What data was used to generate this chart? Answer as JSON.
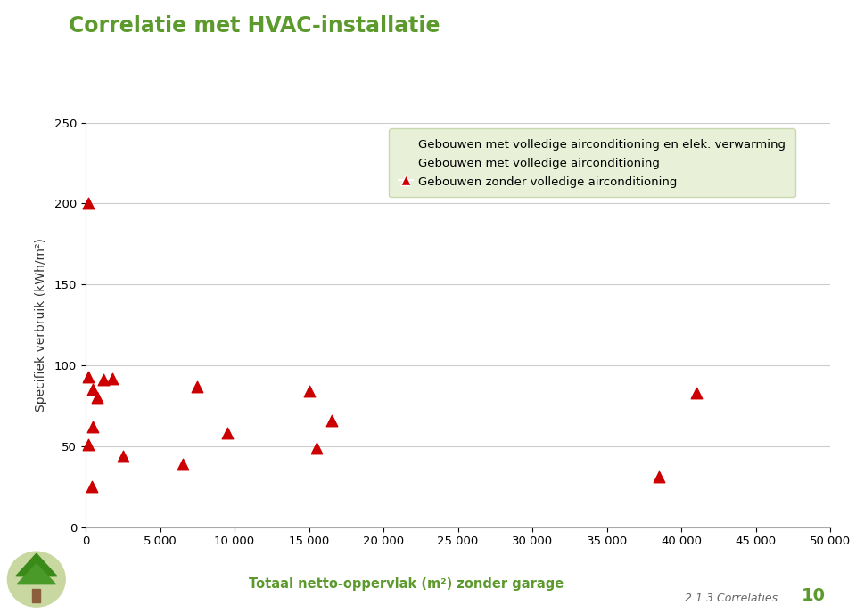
{
  "title": "Correlatie met HVAC-installatie",
  "title_color": "#5c9a2e",
  "xlabel": "Totaal netto-oppervlak (m²) zonder garage",
  "ylabel": "Specifiek verbruik (kWh/m²)",
  "background_color": "#ffffff",
  "plot_bg_color": "#ffffff",
  "xlim": [
    0,
    50000
  ],
  "ylim": [
    0,
    250
  ],
  "xticks": [
    0,
    5000,
    10000,
    15000,
    20000,
    25000,
    30000,
    35000,
    40000,
    45000,
    50000
  ],
  "yticks": [
    0,
    50,
    100,
    150,
    200,
    250
  ],
  "xtick_labels": [
    "0",
    "5.000",
    "10.000",
    "15.000",
    "20.000",
    "25.000",
    "30.000",
    "35.000",
    "40.000",
    "45.000",
    "50.000"
  ],
  "ytick_labels": [
    "0",
    "50",
    "100",
    "150",
    "200",
    "250"
  ],
  "marker_color": "#cc0000",
  "marker": "^",
  "marker_size": 9,
  "legend_entries": [
    "Gebouwen met volledige airconditioning en elek. verwarming",
    "Gebouwen met volledige airconditioning",
    "Gebouwen zonder volledige airconditioning"
  ],
  "legend_bg": "#e8f0d8",
  "legend_edge": "#c8d8b0",
  "subtitle_text": "2.1.3 Correlaties",
  "page_number": "10",
  "sidebar_color": "#c8d8a0",
  "xlabel_bg": "#ddeebb",
  "scatter_x": [
    200,
    500,
    800,
    1200,
    1800,
    2500,
    500,
    200,
    400,
    6500,
    7500,
    9500,
    15000,
    15500,
    16500,
    38500,
    41000,
    200
  ],
  "scatter_y": [
    93,
    85,
    80,
    91,
    92,
    44,
    62,
    51,
    25,
    39,
    87,
    58,
    84,
    49,
    66,
    31,
    83,
    200
  ]
}
